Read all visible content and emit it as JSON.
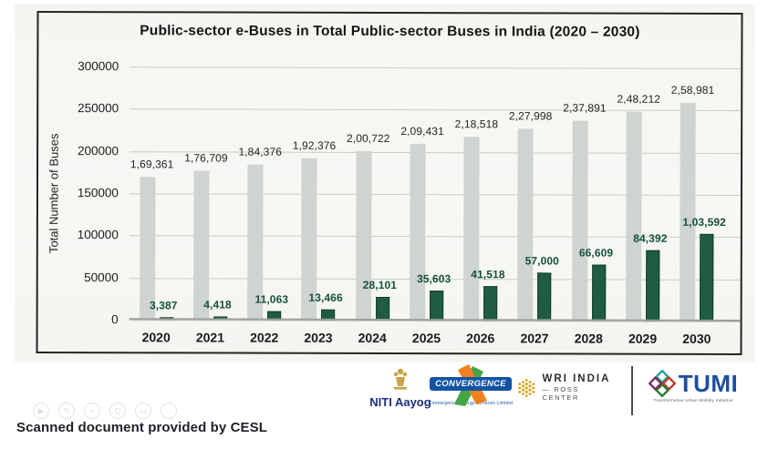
{
  "chart_data": {
    "type": "bar",
    "title": "Public-sector e-Buses in Total Public-sector Buses in India (2020 – 2030)",
    "xlabel": "",
    "ylabel": "Total Number of Buses",
    "ylim": [
      0,
      300000
    ],
    "grid": true,
    "legend_position": "none",
    "yticks": [
      "300000",
      "250000",
      "200000",
      "150000",
      "100000",
      "50000",
      "0"
    ],
    "categories": [
      "2020",
      "2021",
      "2022",
      "2023",
      "2024",
      "2025",
      "2026",
      "2027",
      "2028",
      "2029",
      "2030"
    ],
    "series": [
      {
        "name": "Total public-sector buses",
        "color": "#d0d4d1",
        "values": [
          169361,
          176709,
          184376,
          192376,
          200722,
          209431,
          218518,
          227998,
          237891,
          248212,
          258981
        ],
        "labels": [
          "1,69,361",
          "1,76,709",
          "1,84,376",
          "1,92,376",
          "2,00,722",
          "2,09,431",
          "2,18,518",
          "2,27,998",
          "2,37,891",
          "2,48,212",
          "2,58,981"
        ]
      },
      {
        "name": "Public-sector e-buses",
        "color": "#1f5c42",
        "values": [
          3387,
          4418,
          11063,
          13466,
          28101,
          35603,
          41518,
          57000,
          66609,
          84392,
          103592
        ],
        "labels": [
          "3,387",
          "4,418",
          "11,063",
          "13,466",
          "28,101",
          "35,603",
          "41,518",
          "57,000",
          "66,609",
          "84,392",
          "1,03,592"
        ]
      }
    ]
  },
  "footer": {
    "caption": "Scanned document provided by CESL",
    "logos": {
      "niti": {
        "label": "NITI Aayog"
      },
      "convergence": {
        "label": "CONVERGENCE",
        "sub": "Convergence Energy Services Limited"
      },
      "wri": {
        "line1": "WRI INDIA",
        "line2": "— ROSS CENTER"
      },
      "tumi": {
        "label": "TUMI",
        "tagline": "Transformative Urban Mobility Initiative"
      }
    },
    "toolbar_icons": [
      {
        "name": "play-icon",
        "glyph": "▶"
      },
      {
        "name": "edit-icon",
        "glyph": "✎"
      },
      {
        "name": "hand-icon",
        "glyph": "+"
      },
      {
        "name": "zoom-icon",
        "glyph": "Q"
      },
      {
        "name": "print-icon",
        "glyph": "▭"
      },
      {
        "name": "more-icon",
        "glyph": "–"
      }
    ]
  },
  "colors": {
    "total_bar": "#d0d4d1",
    "ebus_bar": "#1f5c42",
    "ebus_label": "#14503a",
    "gridline": "#ccccc6",
    "frame_border": "#242424",
    "niti_blue": "#1b2f7e",
    "convergence_blue": "#1254a4",
    "wri_gold": "#d9a418",
    "tumi_blue": "#1b4fa0"
  }
}
